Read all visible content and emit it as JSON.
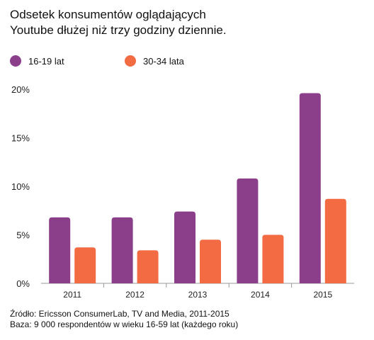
{
  "title_lines": [
    "Odsetek konsumentów oglądających",
    "Youtube dłużej niż trzy godziny dziennie."
  ],
  "footer": {
    "source": "Źródło: Ericsson ConsumerLab, TV and Media, 2011-2015",
    "base": "Baza: 9 000 respondentów w wieku 16-59 lat (każdego roku)"
  },
  "chart_data": {
    "type": "bar",
    "categories": [
      "2011",
      "2012",
      "2013",
      "2014",
      "2015"
    ],
    "series": [
      {
        "name": "16-19 lat",
        "color": "#8B3F8B",
        "values": [
          6.8,
          6.8,
          7.4,
          10.8,
          19.6
        ]
      },
      {
        "name": "30-34 lata",
        "color": "#F26B43",
        "values": [
          3.7,
          3.4,
          4.5,
          5.0,
          8.7
        ]
      }
    ],
    "yticks": [
      "0%",
      "5%",
      "10%",
      "15%",
      "20%"
    ],
    "ytick_values": [
      0,
      5,
      10,
      15,
      20
    ],
    "ylim": [
      0,
      20
    ],
    "grid": false,
    "legend_position": "top-left"
  }
}
